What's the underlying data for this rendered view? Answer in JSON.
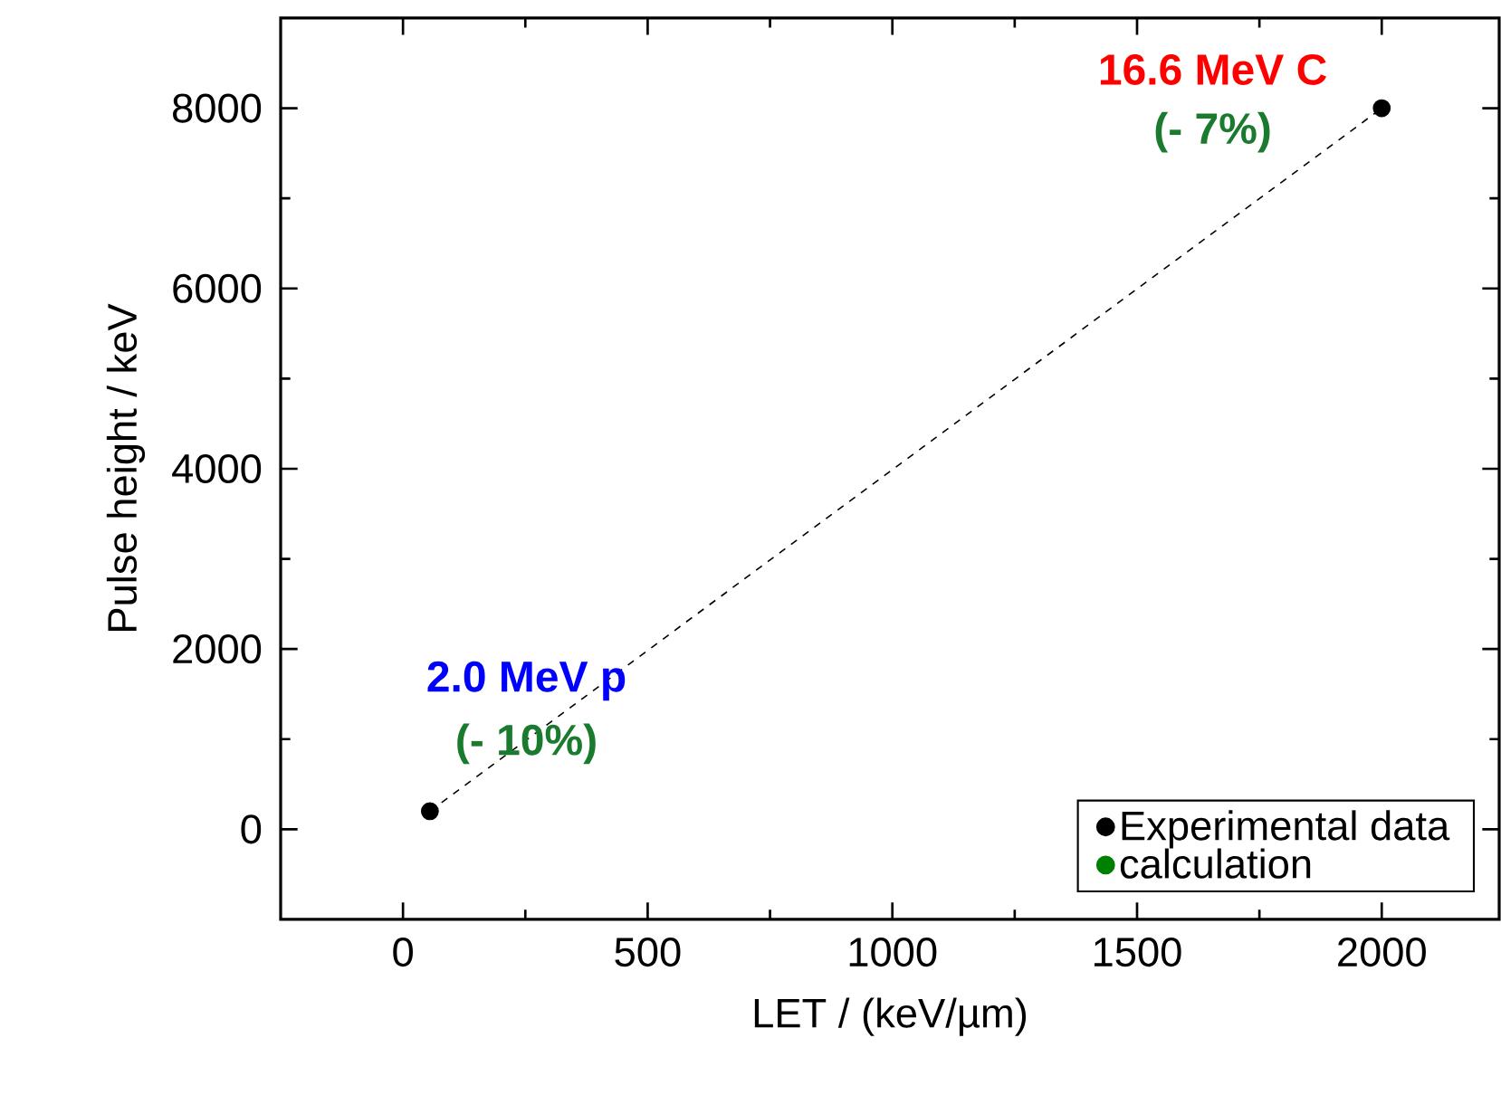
{
  "chart_data": {
    "type": "scatter",
    "xlabel": "LET / (keV/µm)",
    "ylabel": "Pulse height / keV",
    "xlim": [
      -250,
      2240
    ],
    "ylim": [
      -1000,
      9000
    ],
    "xticks": [
      0,
      500,
      1000,
      1500,
      2000
    ],
    "yticks": [
      0,
      2000,
      4000,
      6000,
      8000
    ],
    "grid": false,
    "legend": "bottom right",
    "marker": "circle",
    "series": [
      {
        "type": "line",
        "values": [
          200,
          8000
        ],
        "color": "#000000",
        "line_style": "dashed",
        "marker": "none"
      },
      {
        "name": "Experimental data",
        "values": [
          200,
          8000
        ],
        "color": "#000000"
      },
      {
        "name": "calculation",
        "values": [
          null,
          null
        ],
        "color": "#008000"
      }
    ],
    "x": [
      55,
      2000
    ],
    "annotations": [
      "2.0 MeV p",
      "(- 10%)",
      "16.6 MeV C",
      "(- 7%)"
    ]
  }
}
